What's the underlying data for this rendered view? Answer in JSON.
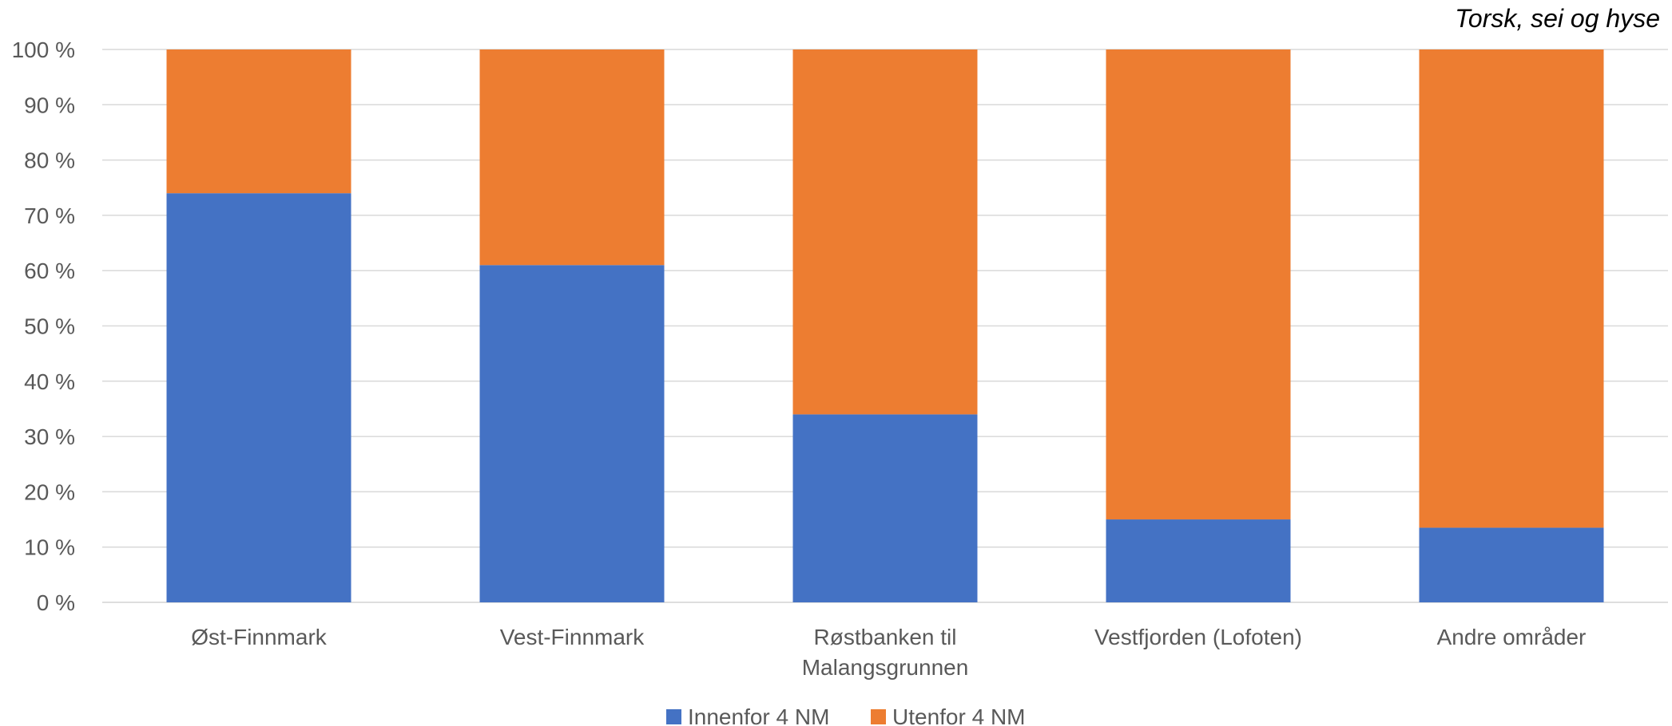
{
  "chart_data": {
    "type": "bar",
    "stacked": true,
    "title": "Torsk, sei og hyse",
    "categories": [
      [
        "Øst-Finnmark"
      ],
      [
        "Vest-Finnmark"
      ],
      [
        "Røstbanken til",
        "Malangsgrunnen"
      ],
      [
        "Vestfjorden (Lofoten)"
      ],
      [
        "Andre områder"
      ]
    ],
    "series": [
      {
        "name": "Innenfor 4 NM",
        "color": "#4472C4",
        "values": [
          74,
          61,
          34,
          15,
          13.5
        ]
      },
      {
        "name": "Utenfor 4 NM",
        "color": "#ED7D31",
        "values": [
          26,
          39,
          66,
          85,
          86.5
        ]
      }
    ],
    "y_ticks": [
      "0 %",
      "10 %",
      "20 %",
      "30 %",
      "40 %",
      "50 %",
      "60 %",
      "70 %",
      "80 %",
      "90 %",
      "100 %"
    ],
    "ylim": [
      0,
      100
    ],
    "xlabel": "",
    "ylabel": "",
    "grid": true,
    "legend": "bottom-center"
  }
}
